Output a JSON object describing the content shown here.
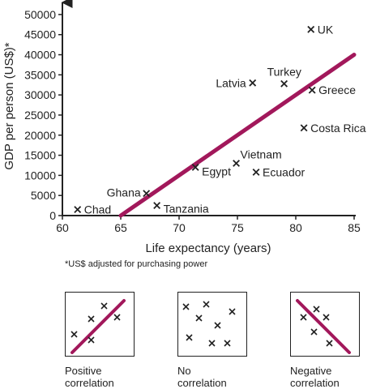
{
  "chart_data": {
    "type": "scatter",
    "xlabel": "Life expectancy (years)",
    "ylabel": "GDP per person (US$)*",
    "xlim": [
      60,
      85
    ],
    "ylim": [
      0,
      52000
    ],
    "x_ticks": [
      60,
      65,
      70,
      75,
      80,
      85
    ],
    "y_ticks": [
      0,
      5000,
      10000,
      15000,
      20000,
      25000,
      30000,
      35000,
      40000,
      45000,
      50000
    ],
    "grid": false,
    "marker": "x",
    "trendline": {
      "x": [
        65,
        85
      ],
      "y": [
        0,
        40000
      ],
      "color": "#a2185b"
    },
    "points": [
      {
        "label": "Chad",
        "x": 61.3,
        "y": 1500
      },
      {
        "label": "Ghana",
        "x": 67.2,
        "y": 5500
      },
      {
        "label": "Tanzania",
        "x": 68.1,
        "y": 2500
      },
      {
        "label": "Egypt",
        "x": 71.4,
        "y": 12000
      },
      {
        "label": "Vietnam",
        "x": 74.9,
        "y": 13000
      },
      {
        "label": "Ecuador",
        "x": 76.6,
        "y": 10800
      },
      {
        "label": "Latvia",
        "x": 76.3,
        "y": 33000
      },
      {
        "label": "Turkey",
        "x": 79.0,
        "y": 32800
      },
      {
        "label": "Greece",
        "x": 81.4,
        "y": 31200
      },
      {
        "label": "Costa Rica",
        "x": 80.7,
        "y": 21800
      },
      {
        "label": "UK",
        "x": 81.3,
        "y": 46300
      }
    ]
  },
  "footnote": "*US$ adjusted for purchasing power",
  "examples": [
    {
      "caption_line1": "Positive",
      "caption_line2": "correlation"
    },
    {
      "caption_line1": "No",
      "caption_line2": "correlation"
    },
    {
      "caption_line1": "Negative",
      "caption_line2": "correlation"
    }
  ],
  "colors": {
    "trend": "#a2185b",
    "ink": "#222222"
  }
}
